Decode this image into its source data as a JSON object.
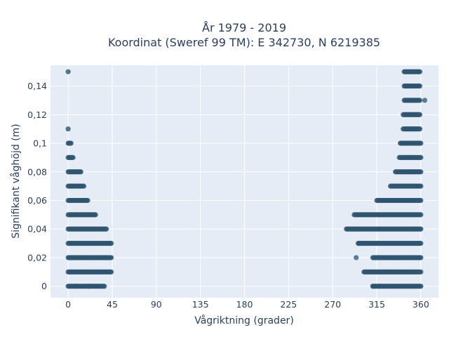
{
  "chart_data": {
    "type": "scatter",
    "title_line1": "År 1979 - 2019",
    "title_line2": "Koordinat (Sweref 99 TM): E 342730, N 6219385",
    "xlabel": "Vågriktning (grader)",
    "ylabel": "Signifikant våghöjd (m)",
    "xlim": [
      -18,
      378
    ],
    "ylim": [
      -0.008,
      0.1545
    ],
    "x_ticks": [
      0,
      45,
      90,
      135,
      180,
      225,
      270,
      315,
      360
    ],
    "x_tick_labels": [
      "0",
      "45",
      "90",
      "135",
      "180",
      "225",
      "270",
      "315",
      "360"
    ],
    "y_ticks": [
      0,
      0.02,
      0.04,
      0.06,
      0.08,
      0.1,
      0.12,
      0.14
    ],
    "y_tick_labels": [
      "0",
      "0,02",
      "0,04",
      "0,06",
      "0,08",
      "0,1",
      "0,12",
      "0,14"
    ],
    "grid": true,
    "colors": {
      "plot_bg": "#e5ecf6",
      "marker": "#2f5570",
      "text": "#2a3f5f"
    },
    "series": [
      {
        "clusters": [
          {
            "y": 0.0,
            "x_from": 0,
            "x_to": 37
          },
          {
            "y": 0.0,
            "x_from": 311,
            "x_to": 360
          },
          {
            "y": 0.01,
            "x_from": 0,
            "x_to": 44
          },
          {
            "y": 0.01,
            "x_from": 302,
            "x_to": 360
          },
          {
            "y": 0.02,
            "x_from": 0,
            "x_to": 44
          },
          {
            "y": 0.02,
            "x_from": 311,
            "x_to": 360
          },
          {
            "y": 0.03,
            "x_from": 0,
            "x_to": 44
          },
          {
            "y": 0.03,
            "x_from": 296,
            "x_to": 360
          },
          {
            "y": 0.04,
            "x_from": 0,
            "x_to": 39
          },
          {
            "y": 0.04,
            "x_from": 284,
            "x_to": 360
          },
          {
            "y": 0.05,
            "x_from": 0,
            "x_to": 28
          },
          {
            "y": 0.05,
            "x_from": 292,
            "x_to": 360
          },
          {
            "y": 0.06,
            "x_from": 0,
            "x_to": 20
          },
          {
            "y": 0.06,
            "x_from": 315,
            "x_to": 360
          },
          {
            "y": 0.07,
            "x_from": 0,
            "x_to": 16
          },
          {
            "y": 0.07,
            "x_from": 329,
            "x_to": 360
          },
          {
            "y": 0.08,
            "x_from": 0,
            "x_to": 13
          },
          {
            "y": 0.08,
            "x_from": 334,
            "x_to": 360
          },
          {
            "y": 0.09,
            "x_from": 0,
            "x_to": 5
          },
          {
            "y": 0.09,
            "x_from": 338,
            "x_to": 360
          },
          {
            "y": 0.1,
            "x_from": 0,
            "x_to": 3
          },
          {
            "y": 0.1,
            "x_from": 339,
            "x_to": 360
          },
          {
            "y": 0.11,
            "x_from": 0,
            "x_to": 0
          },
          {
            "y": 0.11,
            "x_from": 342,
            "x_to": 359
          },
          {
            "y": 0.12,
            "x_from": 342,
            "x_to": 359
          },
          {
            "y": 0.13,
            "x_from": 343,
            "x_to": 359
          },
          {
            "y": 0.14,
            "x_from": 343,
            "x_to": 359
          },
          {
            "y": 0.15,
            "x_from": 0,
            "x_to": 0
          },
          {
            "y": 0.15,
            "x_from": 343,
            "x_to": 359
          }
        ],
        "outliers": [
          {
            "x": 7,
            "y": 0.0
          },
          {
            "x": 21,
            "y": 0.0
          },
          {
            "x": 311,
            "y": 0.0
          },
          {
            "x": 318,
            "y": 0.0
          },
          {
            "x": 294,
            "y": 0.02
          },
          {
            "x": 297,
            "y": 0.03
          },
          {
            "x": 364,
            "y": 0.13
          }
        ]
      }
    ]
  }
}
